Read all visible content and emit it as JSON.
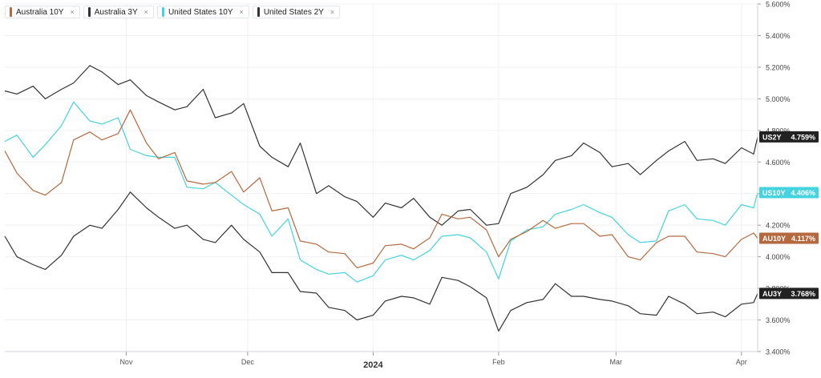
{
  "legend": [
    {
      "label": "Australia 10Y",
      "color": "#b5693e"
    },
    {
      "label": "Australia 3Y",
      "color": "#333333"
    },
    {
      "label": "United States 10Y",
      "color": "#45d3e0"
    },
    {
      "label": "United States 2Y",
      "color": "#333333"
    }
  ],
  "close_icon": "×",
  "chart_data": {
    "type": "line",
    "grid": true,
    "legend_position": "top-left",
    "y_axis": {
      "position": "right",
      "ylim": [
        3.4,
        5.6
      ],
      "ticks": [
        "3.400%",
        "3.600%",
        "3.800%",
        "4.000%",
        "4.200%",
        "4.400%",
        "4.600%",
        "4.800%",
        "5.000%",
        "5.200%",
        "5.400%",
        "5.600%"
      ]
    },
    "x_axis": {
      "xlim": [
        "2023-10-02",
        "2024-04-05"
      ],
      "ticks": [
        {
          "label": "Nov",
          "date": "2023-11-01",
          "bold": false
        },
        {
          "label": "Dec",
          "date": "2023-12-01",
          "bold": false
        },
        {
          "label": "2024",
          "date": "2024-01-01",
          "bold": true
        },
        {
          "label": "Feb",
          "date": "2024-02-01",
          "bold": false
        },
        {
          "label": "Mar",
          "date": "2024-03-01",
          "bold": false
        },
        {
          "label": "Apr",
          "date": "2024-04-01",
          "bold": false
        }
      ]
    },
    "series": [
      {
        "name": "United States 2Y",
        "color": "#333333",
        "badge": {
          "label": "US2Y",
          "value": "4.759%",
          "bg": "#222222"
        },
        "points": [
          [
            "2023-10-02",
            5.05
          ],
          [
            "2023-10-05",
            5.03
          ],
          [
            "2023-10-09",
            5.08
          ],
          [
            "2023-10-12",
            5.0
          ],
          [
            "2023-10-16",
            5.06
          ],
          [
            "2023-10-19",
            5.1
          ],
          [
            "2023-10-23",
            5.21
          ],
          [
            "2023-10-26",
            5.17
          ],
          [
            "2023-10-30",
            5.09
          ],
          [
            "2023-11-02",
            5.12
          ],
          [
            "2023-11-06",
            5.02
          ],
          [
            "2023-11-09",
            4.98
          ],
          [
            "2023-11-13",
            4.93
          ],
          [
            "2023-11-16",
            4.95
          ],
          [
            "2023-11-20",
            5.06
          ],
          [
            "2023-11-23",
            4.88
          ],
          [
            "2023-11-27",
            4.91
          ],
          [
            "2023-11-30",
            4.97
          ],
          [
            "2023-12-04",
            4.7
          ],
          [
            "2023-12-07",
            4.63
          ],
          [
            "2023-12-11",
            4.57
          ],
          [
            "2023-12-14",
            4.72
          ],
          [
            "2023-12-18",
            4.4
          ],
          [
            "2023-12-21",
            4.45
          ],
          [
            "2023-12-25",
            4.38
          ],
          [
            "2023-12-28",
            4.35
          ],
          [
            "2024-01-01",
            4.25
          ],
          [
            "2024-01-04",
            4.34
          ],
          [
            "2024-01-08",
            4.31
          ],
          [
            "2024-01-11",
            4.37
          ],
          [
            "2024-01-15",
            4.25
          ],
          [
            "2024-01-18",
            4.2
          ],
          [
            "2024-01-22",
            4.29
          ],
          [
            "2024-01-25",
            4.3
          ],
          [
            "2024-01-29",
            4.2
          ],
          [
            "2024-02-01",
            4.21
          ],
          [
            "2024-02-04",
            4.4
          ],
          [
            "2024-02-08",
            4.44
          ],
          [
            "2024-02-12",
            4.52
          ],
          [
            "2024-02-15",
            4.61
          ],
          [
            "2024-02-19",
            4.64
          ],
          [
            "2024-02-22",
            4.72
          ],
          [
            "2024-02-26",
            4.66
          ],
          [
            "2024-02-29",
            4.57
          ],
          [
            "2024-03-04",
            4.59
          ],
          [
            "2024-03-07",
            4.52
          ],
          [
            "2024-03-11",
            4.61
          ],
          [
            "2024-03-14",
            4.67
          ],
          [
            "2024-03-18",
            4.73
          ],
          [
            "2024-03-21",
            4.61
          ],
          [
            "2024-03-25",
            4.62
          ],
          [
            "2024-03-28",
            4.59
          ],
          [
            "2024-04-01",
            4.69
          ],
          [
            "2024-04-04",
            4.65
          ],
          [
            "2024-04-05",
            4.759
          ]
        ]
      },
      {
        "name": "United States 10Y",
        "color": "#45d3e0",
        "badge": {
          "label": "US10Y",
          "value": "4.406%",
          "bg": "#45d3e0"
        },
        "points": [
          [
            "2023-10-02",
            4.73
          ],
          [
            "2023-10-05",
            4.77
          ],
          [
            "2023-10-09",
            4.63
          ],
          [
            "2023-10-12",
            4.71
          ],
          [
            "2023-10-16",
            4.83
          ],
          [
            "2023-10-19",
            4.98
          ],
          [
            "2023-10-23",
            4.86
          ],
          [
            "2023-10-26",
            4.84
          ],
          [
            "2023-10-30",
            4.88
          ],
          [
            "2023-11-02",
            4.68
          ],
          [
            "2023-11-06",
            4.64
          ],
          [
            "2023-11-09",
            4.63
          ],
          [
            "2023-11-13",
            4.63
          ],
          [
            "2023-11-16",
            4.44
          ],
          [
            "2023-11-20",
            4.43
          ],
          [
            "2023-11-23",
            4.47
          ],
          [
            "2023-11-27",
            4.39
          ],
          [
            "2023-11-30",
            4.33
          ],
          [
            "2023-12-04",
            4.27
          ],
          [
            "2023-12-07",
            4.13
          ],
          [
            "2023-12-11",
            4.24
          ],
          [
            "2023-12-14",
            3.98
          ],
          [
            "2023-12-18",
            3.92
          ],
          [
            "2023-12-21",
            3.89
          ],
          [
            "2023-12-25",
            3.9
          ],
          [
            "2023-12-28",
            3.84
          ],
          [
            "2024-01-01",
            3.88
          ],
          [
            "2024-01-04",
            3.98
          ],
          [
            "2024-01-08",
            4.01
          ],
          [
            "2024-01-11",
            3.98
          ],
          [
            "2024-01-15",
            4.04
          ],
          [
            "2024-01-18",
            4.13
          ],
          [
            "2024-01-22",
            4.14
          ],
          [
            "2024-01-25",
            4.12
          ],
          [
            "2024-01-29",
            4.03
          ],
          [
            "2024-02-01",
            3.86
          ],
          [
            "2024-02-04",
            4.1
          ],
          [
            "2024-02-08",
            4.17
          ],
          [
            "2024-02-12",
            4.19
          ],
          [
            "2024-02-15",
            4.27
          ],
          [
            "2024-02-19",
            4.3
          ],
          [
            "2024-02-22",
            4.33
          ],
          [
            "2024-02-26",
            4.28
          ],
          [
            "2024-02-29",
            4.25
          ],
          [
            "2024-03-04",
            4.14
          ],
          [
            "2024-03-07",
            4.09
          ],
          [
            "2024-03-11",
            4.1
          ],
          [
            "2024-03-14",
            4.29
          ],
          [
            "2024-03-18",
            4.33
          ],
          [
            "2024-03-21",
            4.24
          ],
          [
            "2024-03-25",
            4.23
          ],
          [
            "2024-03-28",
            4.2
          ],
          [
            "2024-04-01",
            4.33
          ],
          [
            "2024-04-04",
            4.31
          ],
          [
            "2024-04-05",
            4.406
          ]
        ]
      },
      {
        "name": "Australia 10Y",
        "color": "#b5693e",
        "badge": {
          "label": "AU10Y",
          "value": "4.117%",
          "bg": "#b5693e"
        },
        "points": [
          [
            "2023-10-02",
            4.67
          ],
          [
            "2023-10-05",
            4.53
          ],
          [
            "2023-10-09",
            4.42
          ],
          [
            "2023-10-12",
            4.39
          ],
          [
            "2023-10-16",
            4.47
          ],
          [
            "2023-10-19",
            4.74
          ],
          [
            "2023-10-23",
            4.79
          ],
          [
            "2023-10-26",
            4.74
          ],
          [
            "2023-10-30",
            4.78
          ],
          [
            "2023-11-02",
            4.93
          ],
          [
            "2023-11-06",
            4.72
          ],
          [
            "2023-11-09",
            4.62
          ],
          [
            "2023-11-13",
            4.66
          ],
          [
            "2023-11-16",
            4.48
          ],
          [
            "2023-11-20",
            4.46
          ],
          [
            "2023-11-23",
            4.47
          ],
          [
            "2023-11-27",
            4.54
          ],
          [
            "2023-11-30",
            4.41
          ],
          [
            "2023-12-04",
            4.5
          ],
          [
            "2023-12-07",
            4.29
          ],
          [
            "2023-12-11",
            4.31
          ],
          [
            "2023-12-14",
            4.1
          ],
          [
            "2023-12-18",
            4.08
          ],
          [
            "2023-12-21",
            4.03
          ],
          [
            "2023-12-25",
            4.02
          ],
          [
            "2023-12-28",
            3.93
          ],
          [
            "2024-01-01",
            3.96
          ],
          [
            "2024-01-04",
            4.07
          ],
          [
            "2024-01-08",
            4.08
          ],
          [
            "2024-01-11",
            4.05
          ],
          [
            "2024-01-15",
            4.12
          ],
          [
            "2024-01-18",
            4.27
          ],
          [
            "2024-01-22",
            4.24
          ],
          [
            "2024-01-25",
            4.25
          ],
          [
            "2024-01-29",
            4.17
          ],
          [
            "2024-02-01",
            4.0
          ],
          [
            "2024-02-04",
            4.11
          ],
          [
            "2024-02-08",
            4.16
          ],
          [
            "2024-02-12",
            4.23
          ],
          [
            "2024-02-15",
            4.18
          ],
          [
            "2024-02-19",
            4.21
          ],
          [
            "2024-02-22",
            4.21
          ],
          [
            "2024-02-26",
            4.13
          ],
          [
            "2024-02-29",
            4.14
          ],
          [
            "2024-03-04",
            4.0
          ],
          [
            "2024-03-07",
            3.98
          ],
          [
            "2024-03-11",
            4.09
          ],
          [
            "2024-03-14",
            4.13
          ],
          [
            "2024-03-18",
            4.13
          ],
          [
            "2024-03-21",
            4.03
          ],
          [
            "2024-03-25",
            4.02
          ],
          [
            "2024-03-28",
            4.0
          ],
          [
            "2024-04-01",
            4.11
          ],
          [
            "2024-04-04",
            4.15
          ],
          [
            "2024-04-05",
            4.117
          ]
        ]
      },
      {
        "name": "Australia 3Y",
        "color": "#333333",
        "badge": {
          "label": "AU3Y",
          "value": "3.768%",
          "bg": "#222222"
        },
        "points": [
          [
            "2023-10-02",
            4.13
          ],
          [
            "2023-10-05",
            4.0
          ],
          [
            "2023-10-09",
            3.95
          ],
          [
            "2023-10-12",
            3.92
          ],
          [
            "2023-10-16",
            4.01
          ],
          [
            "2023-10-19",
            4.13
          ],
          [
            "2023-10-23",
            4.2
          ],
          [
            "2023-10-26",
            4.18
          ],
          [
            "2023-10-30",
            4.3
          ],
          [
            "2023-11-02",
            4.41
          ],
          [
            "2023-11-06",
            4.31
          ],
          [
            "2023-11-09",
            4.25
          ],
          [
            "2023-11-13",
            4.18
          ],
          [
            "2023-11-16",
            4.2
          ],
          [
            "2023-11-20",
            4.11
          ],
          [
            "2023-11-23",
            4.09
          ],
          [
            "2023-11-27",
            4.2
          ],
          [
            "2023-11-30",
            4.11
          ],
          [
            "2023-12-04",
            4.03
          ],
          [
            "2023-12-07",
            3.9
          ],
          [
            "2023-12-11",
            3.9
          ],
          [
            "2023-12-14",
            3.78
          ],
          [
            "2023-12-18",
            3.77
          ],
          [
            "2023-12-21",
            3.68
          ],
          [
            "2023-12-25",
            3.66
          ],
          [
            "2023-12-28",
            3.6
          ],
          [
            "2024-01-01",
            3.63
          ],
          [
            "2024-01-04",
            3.72
          ],
          [
            "2024-01-08",
            3.75
          ],
          [
            "2024-01-11",
            3.74
          ],
          [
            "2024-01-15",
            3.7
          ],
          [
            "2024-01-18",
            3.87
          ],
          [
            "2024-01-22",
            3.85
          ],
          [
            "2024-01-25",
            3.81
          ],
          [
            "2024-01-29",
            3.74
          ],
          [
            "2024-02-01",
            3.53
          ],
          [
            "2024-02-04",
            3.66
          ],
          [
            "2024-02-08",
            3.71
          ],
          [
            "2024-02-12",
            3.73
          ],
          [
            "2024-02-15",
            3.83
          ],
          [
            "2024-02-19",
            3.75
          ],
          [
            "2024-02-22",
            3.75
          ],
          [
            "2024-02-26",
            3.73
          ],
          [
            "2024-02-29",
            3.72
          ],
          [
            "2024-03-04",
            3.69
          ],
          [
            "2024-03-07",
            3.64
          ],
          [
            "2024-03-11",
            3.63
          ],
          [
            "2024-03-14",
            3.75
          ],
          [
            "2024-03-18",
            3.7
          ],
          [
            "2024-03-21",
            3.64
          ],
          [
            "2024-03-25",
            3.65
          ],
          [
            "2024-03-28",
            3.62
          ],
          [
            "2024-04-01",
            3.7
          ],
          [
            "2024-04-04",
            3.71
          ],
          [
            "2024-04-05",
            3.768
          ]
        ]
      }
    ]
  }
}
